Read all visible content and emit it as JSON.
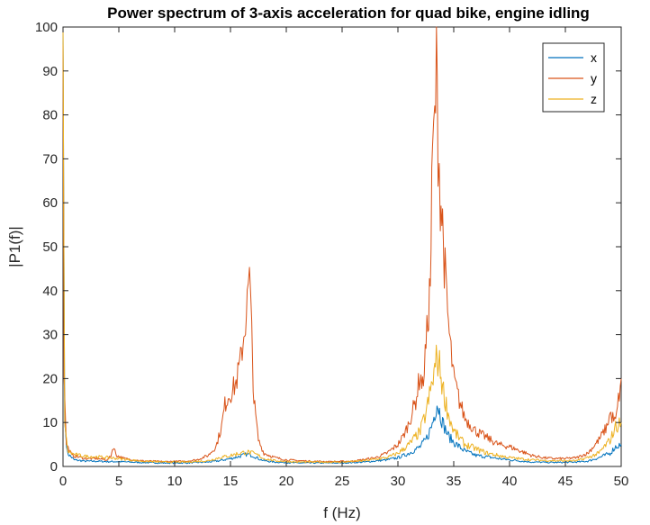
{
  "chart_data": {
    "type": "line",
    "title": "Power spectrum of 3-axis acceleration for quad bike, engine idling",
    "xlabel": "f (Hz)",
    "ylabel": "|P1(f)|",
    "xlim": [
      0,
      50
    ],
    "ylim": [
      0,
      100
    ],
    "xticks": [
      "0",
      "5",
      "10",
      "15",
      "20",
      "25",
      "30",
      "35",
      "40",
      "45",
      "50"
    ],
    "yticks": [
      "0",
      "10",
      "20",
      "30",
      "40",
      "50",
      "60",
      "70",
      "80",
      "90",
      "100"
    ],
    "grid": false,
    "legend_position": "top-right",
    "series": [
      {
        "name": "x",
        "color": "#0072BD",
        "points": [
          [
            0,
            100
          ],
          [
            0.15,
            10
          ],
          [
            0.4,
            3
          ],
          [
            1,
            1.5
          ],
          [
            2,
            1.2
          ],
          [
            3,
            1.2
          ],
          [
            4,
            1.1
          ],
          [
            5,
            1.1
          ],
          [
            7,
            0.9
          ],
          [
            9,
            0.8
          ],
          [
            11,
            0.8
          ],
          [
            13,
            1
          ],
          [
            14,
            1.3
          ],
          [
            15,
            1.8
          ],
          [
            15.8,
            2.3
          ],
          [
            16.5,
            2.8
          ],
          [
            17,
            2.5
          ],
          [
            17.5,
            1.8
          ],
          [
            18,
            1.3
          ],
          [
            19,
            1
          ],
          [
            21,
            0.8
          ],
          [
            23,
            0.8
          ],
          [
            25,
            0.8
          ],
          [
            27,
            1
          ],
          [
            29,
            1.5
          ],
          [
            30,
            2
          ],
          [
            31,
            3
          ],
          [
            32,
            4.5
          ],
          [
            32.5,
            6
          ],
          [
            33,
            9
          ],
          [
            33.3,
            12
          ],
          [
            33.5,
            14.5
          ],
          [
            33.8,
            12
          ],
          [
            34,
            10
          ],
          [
            34.5,
            7
          ],
          [
            35,
            5.5
          ],
          [
            36,
            3.5
          ],
          [
            37,
            2.5
          ],
          [
            38,
            2.2
          ],
          [
            39,
            1.8
          ],
          [
            40,
            1.5
          ],
          [
            42,
            1
          ],
          [
            44,
            0.9
          ],
          [
            46,
            1
          ],
          [
            47,
            1.2
          ],
          [
            48,
            2
          ],
          [
            49,
            3
          ],
          [
            49.5,
            4.5
          ],
          [
            50,
            5
          ]
        ]
      },
      {
        "name": "y",
        "color": "#D95319",
        "points": [
          [
            0,
            96
          ],
          [
            0.1,
            20
          ],
          [
            0.3,
            5
          ],
          [
            0.8,
            2.5
          ],
          [
            2,
            1.8
          ],
          [
            3,
            1.8
          ],
          [
            4,
            1.5
          ],
          [
            4.3,
            2.5
          ],
          [
            4.5,
            4.5
          ],
          [
            4.8,
            2.5
          ],
          [
            5.5,
            1.8
          ],
          [
            7,
            1.3
          ],
          [
            9,
            1.1
          ],
          [
            11,
            1.2
          ],
          [
            12,
            1.5
          ],
          [
            13,
            2.5
          ],
          [
            13.7,
            4.5
          ],
          [
            14.2,
            9
          ],
          [
            14.5,
            14
          ],
          [
            14.8,
            16
          ],
          [
            15.2,
            17.5
          ],
          [
            15.5,
            19
          ],
          [
            15.9,
            24
          ],
          [
            16.2,
            30
          ],
          [
            16.5,
            37
          ],
          [
            16.7,
            43
          ],
          [
            16.9,
            30
          ],
          [
            17.1,
            15
          ],
          [
            17.5,
            6
          ],
          [
            18,
            3
          ],
          [
            19,
            2
          ],
          [
            20,
            1.5
          ],
          [
            22,
            1.2
          ],
          [
            24,
            1.1
          ],
          [
            26,
            1.2
          ],
          [
            28,
            2
          ],
          [
            29,
            3
          ],
          [
            30,
            5
          ],
          [
            30.5,
            7
          ],
          [
            31,
            10
          ],
          [
            31.6,
            15
          ],
          [
            32,
            21
          ],
          [
            32.2,
            18
          ],
          [
            32.6,
            30
          ],
          [
            32.9,
            42
          ],
          [
            33.1,
            70
          ],
          [
            33.3,
            78
          ],
          [
            33.45,
            91
          ],
          [
            33.6,
            75
          ],
          [
            33.8,
            62
          ],
          [
            34,
            55
          ],
          [
            34.3,
            40
          ],
          [
            34.6,
            30
          ],
          [
            35,
            20
          ],
          [
            35.5,
            15
          ],
          [
            36,
            11
          ],
          [
            37,
            8
          ],
          [
            38,
            6.5
          ],
          [
            39,
            5
          ],
          [
            40,
            4.5
          ],
          [
            41,
            3.5
          ],
          [
            42,
            2.5
          ],
          [
            43,
            2
          ],
          [
            44,
            1.8
          ],
          [
            45,
            1.8
          ],
          [
            46,
            2
          ],
          [
            47,
            3
          ],
          [
            48,
            6
          ],
          [
            48.7,
            9
          ],
          [
            49,
            12
          ],
          [
            49.5,
            10
          ],
          [
            50,
            20
          ]
        ]
      },
      {
        "name": "z",
        "color": "#EDB120",
        "points": [
          [
            0,
            100
          ],
          [
            0.15,
            10
          ],
          [
            0.4,
            3.5
          ],
          [
            1,
            2.7
          ],
          [
            2,
            2.3
          ],
          [
            3,
            2.2
          ],
          [
            4,
            2
          ],
          [
            5,
            1.8
          ],
          [
            7,
            1.2
          ],
          [
            9,
            1
          ],
          [
            11,
            1
          ],
          [
            13,
            1.3
          ],
          [
            14,
            2
          ],
          [
            15,
            2.5
          ],
          [
            15.8,
            3
          ],
          [
            16.5,
            3.3
          ],
          [
            17,
            3
          ],
          [
            17.5,
            2.5
          ],
          [
            18,
            1.8
          ],
          [
            19,
            1.3
          ],
          [
            21,
            1
          ],
          [
            23,
            1
          ],
          [
            25,
            1
          ],
          [
            27,
            1.3
          ],
          [
            29,
            2
          ],
          [
            30,
            3
          ],
          [
            31,
            5
          ],
          [
            32,
            8
          ],
          [
            32.5,
            12
          ],
          [
            33,
            18
          ],
          [
            33.3,
            22
          ],
          [
            33.5,
            25
          ],
          [
            33.8,
            22
          ],
          [
            34,
            18
          ],
          [
            34.5,
            12
          ],
          [
            35,
            8
          ],
          [
            36,
            5
          ],
          [
            37,
            4
          ],
          [
            38,
            3
          ],
          [
            39,
            2.5
          ],
          [
            40,
            2
          ],
          [
            42,
            1.5
          ],
          [
            44,
            1.3
          ],
          [
            46,
            1.3
          ],
          [
            47,
            2
          ],
          [
            48,
            3
          ],
          [
            49,
            6
          ],
          [
            49.5,
            9
          ],
          [
            50,
            10
          ]
        ]
      }
    ]
  }
}
